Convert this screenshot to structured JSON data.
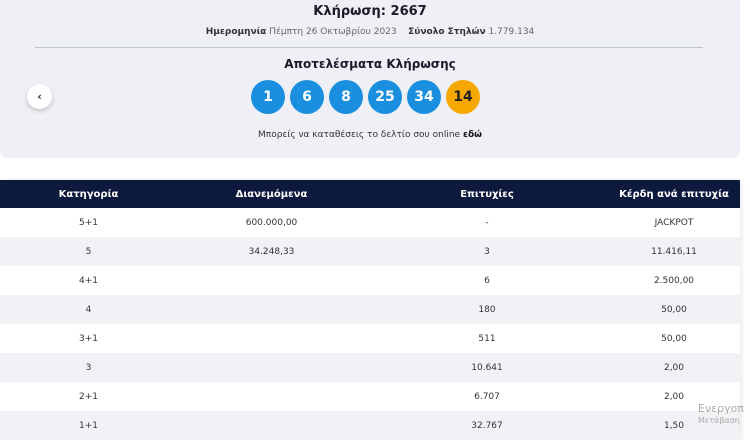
{
  "draw": {
    "title": "Κλήρωση: 2667",
    "date_label": "Ημερομηνία",
    "date": "Πέμπτη 26 Οκτωβρίου 2023",
    "columns_label": "Σύνολο Στηλών",
    "columns": "1.779.134"
  },
  "results": {
    "title": "Αποτελέσματα Κλήρωσης",
    "numbers": [
      "1",
      "6",
      "8",
      "25",
      "34"
    ],
    "bonus": "14",
    "online_text": "Μπορείς να καταθέσεις το δελτίο σου online",
    "online_link": "εδώ",
    "prev_icon": "‹"
  },
  "colors": {
    "ball": "#1a8fe0",
    "bonus": "#f7a800",
    "header": "#0d1a3d"
  },
  "table": {
    "headers": [
      "Κατηγορία",
      "Διανεμόμενα",
      "Επιτυχίες",
      "Κέρδη ανά επιτυχία"
    ],
    "rows": [
      [
        "5+1",
        "600.000,00",
        "-",
        "JACKPOT"
      ],
      [
        "5",
        "34.248,33",
        "3",
        "11.416,11"
      ],
      [
        "4+1",
        "",
        "6",
        "2.500,00"
      ],
      [
        "4",
        "",
        "180",
        "50,00"
      ],
      [
        "3+1",
        "",
        "511",
        "50,00"
      ],
      [
        "3",
        "",
        "10.641",
        "2,00"
      ],
      [
        "2+1",
        "",
        "6.707",
        "2,00"
      ],
      [
        "1+1",
        "",
        "32.767",
        "1,50"
      ]
    ]
  },
  "watermark": {
    "line1": "Ενεργοπ",
    "line2": "Μετάβαση"
  }
}
